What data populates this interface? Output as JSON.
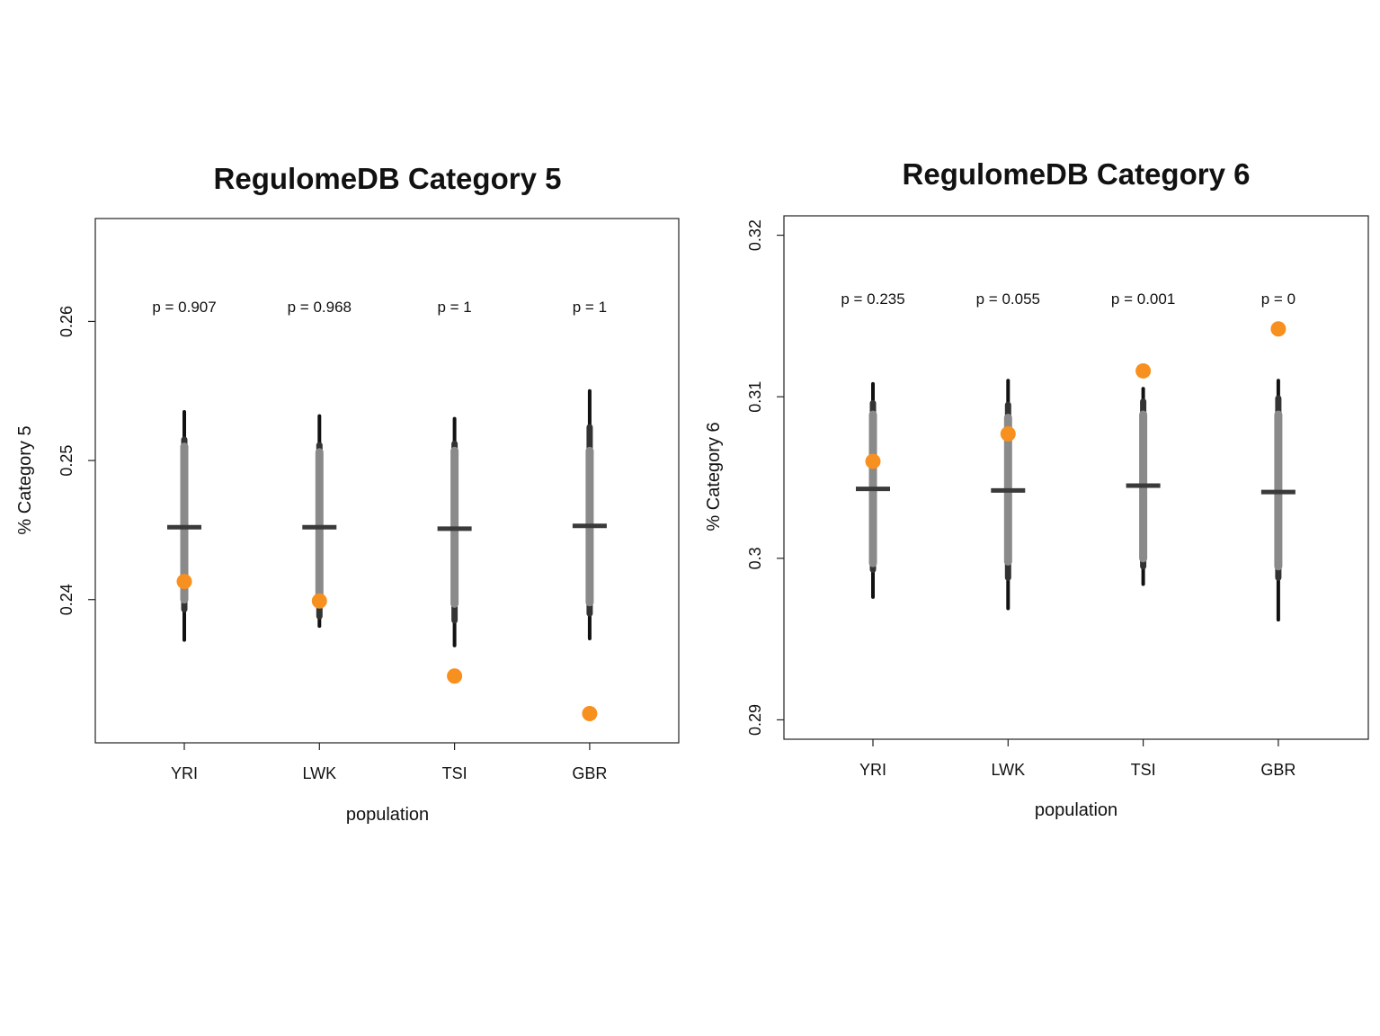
{
  "colors": {
    "background": "#ffffff",
    "frame": "#222222",
    "outer_interval": "#111111",
    "mid_interval": "#333333",
    "inner_interval": "#8a8a8a",
    "median": "#3a3a3a",
    "observed": "#f7901e"
  },
  "chart_data": [
    {
      "type": "interval",
      "title": "RegulomeDB Category 5",
      "xlabel": "population",
      "ylabel": "% Category 5",
      "categories": [
        "YRI",
        "LWK",
        "TSI",
        "GBR"
      ],
      "yticks": [
        0.24,
        0.25,
        0.26
      ],
      "ytick_labels": [
        "0.24",
        "0.25",
        "0.26"
      ],
      "ylim": [
        0.2297,
        0.2674
      ],
      "grid": false,
      "series": [
        {
          "median": [
            0.2452,
            0.2452,
            0.2451,
            0.2453
          ],
          "inner_low": [
            0.24,
            0.2398,
            0.2397,
            0.2398
          ],
          "inner_high": [
            0.251,
            0.2506,
            0.2507,
            0.2507
          ],
          "mid_low": [
            0.2393,
            0.2388,
            0.2385,
            0.239
          ],
          "mid_high": [
            0.2515,
            0.2511,
            0.2512,
            0.2524
          ],
          "outer_low": [
            0.2371,
            0.2381,
            0.2367,
            0.2372
          ],
          "outer_high": [
            0.2535,
            0.2532,
            0.253,
            0.255
          ]
        },
        {
          "observed": [
            0.2413,
            0.2399,
            0.2345,
            0.2318
          ]
        }
      ],
      "annotations": [
        "p = 0.907",
        "p = 0.968",
        "p = 1",
        "p = 1"
      ]
    },
    {
      "type": "interval",
      "title": "RegulomeDB Category 6",
      "xlabel": "population",
      "ylabel": "% Category 6",
      "categories": [
        "YRI",
        "LWK",
        "TSI",
        "GBR"
      ],
      "yticks": [
        0.29,
        0.3,
        0.31,
        0.32
      ],
      "ytick_labels": [
        "0.29",
        "0.3",
        "0.31",
        "0.32"
      ],
      "ylim": [
        0.2888,
        0.3212
      ],
      "grid": false,
      "series": [
        {
          "median": [
            0.3043,
            0.3042,
            0.3045,
            0.3041
          ],
          "inner_low": [
            0.2997,
            0.2998,
            0.3,
            0.2995
          ],
          "inner_high": [
            0.3089,
            0.3087,
            0.3089,
            0.3089
          ],
          "mid_low": [
            0.2993,
            0.2988,
            0.2995,
            0.2988
          ],
          "mid_high": [
            0.3096,
            0.3095,
            0.3097,
            0.3099
          ],
          "outer_low": [
            0.2976,
            0.2969,
            0.2984,
            0.2962
          ],
          "outer_high": [
            0.3108,
            0.311,
            0.3105,
            0.311
          ]
        },
        {
          "observed": [
            0.306,
            0.3077,
            0.3116,
            0.3142
          ]
        }
      ],
      "annotations": [
        "p = 0.235",
        "p = 0.055",
        "p = 0.001",
        "p = 0"
      ]
    }
  ]
}
